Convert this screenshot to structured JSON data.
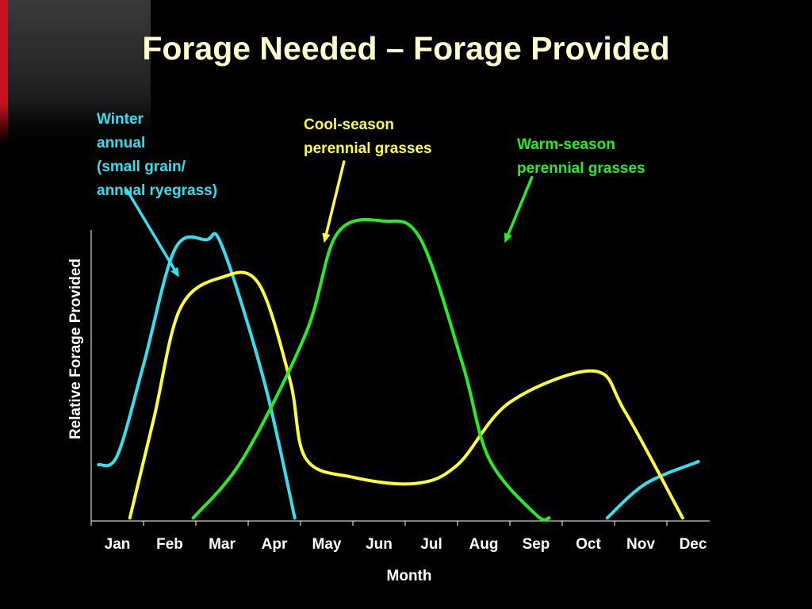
{
  "title": "Forage Needed – Forage Provided",
  "colors": {
    "background": "#000000",
    "title": "#ffffcc",
    "logo_accent": "#c8101e"
  },
  "chart_data": {
    "type": "line",
    "xlabel": "Month",
    "ylabel": "Relative Forage Provided",
    "categories": [
      "Jan",
      "Feb",
      "Mar",
      "Apr",
      "May",
      "Jun",
      "Jul",
      "Aug",
      "Sep",
      "Oct",
      "Nov",
      "Dec"
    ],
    "x_range": [
      0,
      11.8
    ],
    "ylim": [
      0,
      100
    ],
    "grid": false,
    "legend": "inline annotations with arrows",
    "series": [
      {
        "name": "Winter annual (small grain/ annual ryegrass)",
        "label_text": "Winter\nannual\n(small grain/\nannual ryegrass)",
        "color": "#33e0f0",
        "segments": [
          [
            [
              0.14,
              18
            ],
            [
              0.5,
              21
            ],
            [
              1.0,
              50
            ],
            [
              1.6,
              87
            ],
            [
              2.2,
              90
            ],
            [
              2.5,
              88
            ],
            [
              3.3,
              45
            ],
            [
              3.89,
              1
            ]
          ],
          [
            [
              9.86,
              1
            ],
            [
              10.6,
              12
            ],
            [
              11.6,
              19
            ]
          ]
        ]
      },
      {
        "name": "Cool-season perennial grasses",
        "label_text": "Cool-season\nperennial grasses",
        "color": "#ffff33",
        "segments": [
          [
            [
              0.74,
              1
            ],
            [
              1.2,
              33
            ],
            [
              1.7,
              68
            ],
            [
              2.5,
              78
            ],
            [
              3.2,
              76
            ],
            [
              3.8,
              45
            ],
            [
              4.1,
              20
            ],
            [
              5.0,
              14
            ],
            [
              6.2,
              12
            ],
            [
              7.0,
              18
            ],
            [
              8.0,
              38
            ],
            [
              9.6,
              48
            ],
            [
              10.2,
              35
            ],
            [
              11.3,
              1
            ]
          ]
        ]
      },
      {
        "name": "Warm-season perennial grasses",
        "label_text": "Warm-season\nperennial grasses",
        "color": "#22ee22",
        "segments": [
          [
            [
              1.95,
              1
            ],
            [
              2.9,
              20
            ],
            [
              4.1,
              60
            ],
            [
              4.7,
              92
            ],
            [
              5.6,
              96
            ],
            [
              6.3,
              90
            ],
            [
              7.1,
              50
            ],
            [
              7.6,
              20
            ],
            [
              8.5,
              2
            ],
            [
              8.75,
              1
            ]
          ]
        ]
      }
    ],
    "arrows": [
      {
        "series": 0,
        "from": [
          0.68,
          106
        ],
        "to": [
          1.68,
          78
        ]
      },
      {
        "series": 1,
        "from": [
          4.83,
          115
        ],
        "to": [
          4.45,
          89
        ]
      },
      {
        "series": 2,
        "from": [
          8.42,
          110
        ],
        "to": [
          7.9,
          89
        ]
      }
    ]
  }
}
